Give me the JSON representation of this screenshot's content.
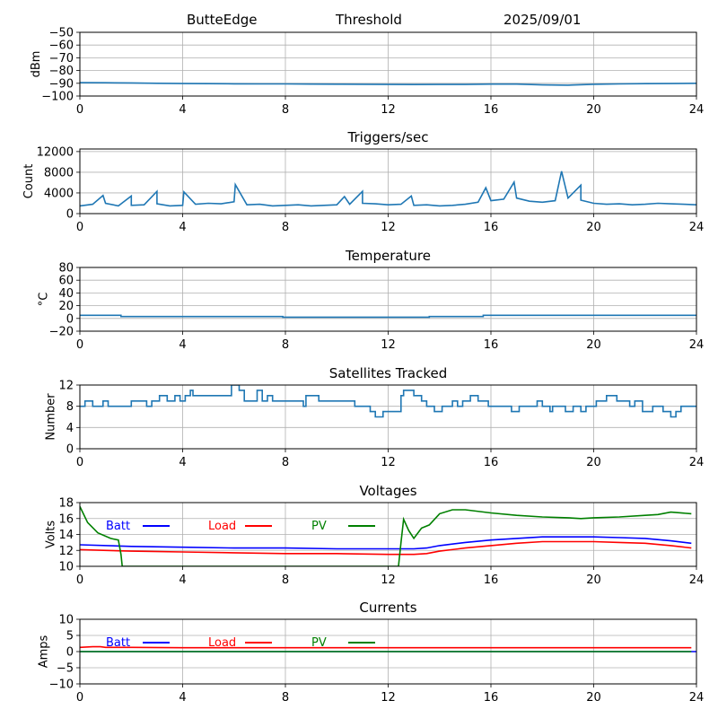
{
  "header": {
    "station": "ButteEdge",
    "mode": "Threshold",
    "date": "2025/09/01"
  },
  "chart_data": [
    {
      "type": "line",
      "title": "",
      "xlabel": "",
      "ylabel": "dBm",
      "xlim": [
        0,
        24
      ],
      "ylim": [
        -100,
        -50
      ],
      "xticks": [
        0,
        4,
        8,
        12,
        16,
        20,
        24
      ],
      "yticks": [
        -100,
        -90,
        -80,
        -70,
        -60,
        -50
      ],
      "grid": true,
      "series": [
        {
          "color": "#1f77b4",
          "x": [
            0,
            1,
            2,
            3,
            4,
            5,
            6,
            7,
            8,
            9,
            10,
            11,
            12,
            13,
            14,
            15,
            16,
            17,
            18,
            19,
            20,
            21,
            22,
            23,
            24
          ],
          "y": [
            -89.5,
            -89.6,
            -89.7,
            -90.0,
            -90.2,
            -90.3,
            -90.4,
            -90.5,
            -90.5,
            -90.6,
            -90.7,
            -90.8,
            -90.9,
            -91.0,
            -90.9,
            -90.9,
            -90.6,
            -90.6,
            -91.3,
            -91.5,
            -90.8,
            -90.5,
            -90.3,
            -90.2,
            -90.0
          ]
        }
      ]
    },
    {
      "type": "line",
      "title": "Triggers/sec",
      "xlabel": "",
      "ylabel": "Count",
      "xlim": [
        0,
        24
      ],
      "ylim": [
        0,
        12500
      ],
      "xticks": [
        0,
        4,
        8,
        12,
        16,
        20,
        24
      ],
      "yticks": [
        0,
        4000,
        8000,
        12000
      ],
      "grid": true,
      "series": [
        {
          "color": "#1f77b4",
          "x": [
            0,
            0.5,
            1,
            1.5,
            2,
            2.5,
            3,
            3.5,
            4,
            4.5,
            5,
            5.5,
            6,
            6.5,
            7,
            7.5,
            8,
            8.5,
            9,
            9.5,
            10,
            10.5,
            11,
            11.5,
            12,
            12.5,
            13,
            13.5,
            14,
            14.5,
            15,
            15.5,
            16,
            16.5,
            17,
            17.5,
            18,
            18.5,
            19,
            19.5,
            20,
            20.5,
            21,
            21.5,
            22,
            22.5,
            23,
            23.5,
            24
          ],
          "y": [
            1500,
            1800,
            2000,
            1500,
            1600,
            1700,
            1900,
            1500,
            1600,
            1800,
            2000,
            1900,
            2300,
            1700,
            1800,
            1500,
            1600,
            1700,
            1500,
            1600,
            1700,
            1800,
            2000,
            1900,
            1700,
            1800,
            1600,
            1700,
            1500,
            1600,
            1800,
            2200,
            2500,
            2800,
            3000,
            2400,
            2200,
            2500,
            3000,
            2600,
            2000,
            1800,
            1900,
            1700,
            1800,
            2000,
            1900,
            1800,
            1700
          ],
          "spikes": [
            [
              0.9,
              3500
            ],
            [
              2.0,
              3400
            ],
            [
              3.0,
              4300
            ],
            [
              4.05,
              4200
            ],
            [
              6.05,
              5600
            ],
            [
              10.3,
              3300
            ],
            [
              11.0,
              4300
            ],
            [
              12.9,
              3400
            ],
            [
              15.8,
              5000
            ],
            [
              16.9,
              6100
            ],
            [
              18.75,
              8200
            ],
            [
              19.5,
              5500
            ]
          ]
        }
      ]
    },
    {
      "type": "line",
      "title": "Temperature",
      "xlabel": "",
      "ylabel": "°C",
      "xlim": [
        0,
        24
      ],
      "ylim": [
        -20,
        80
      ],
      "xticks": [
        0,
        4,
        8,
        12,
        16,
        20,
        24
      ],
      "yticks": [
        -20,
        0,
        20,
        40,
        60,
        80
      ],
      "grid": true,
      "series": [
        {
          "color": "#1f77b4",
          "step": true,
          "x": [
            0,
            1.6,
            7.9,
            13.6,
            15.7,
            24
          ],
          "y": [
            5,
            3,
            2,
            3,
            5,
            5
          ]
        }
      ]
    },
    {
      "type": "line",
      "title": "Satellites Tracked",
      "xlabel": "",
      "ylabel": "Number",
      "xlim": [
        0,
        24
      ],
      "ylim": [
        0,
        12
      ],
      "xticks": [
        0,
        4,
        8,
        12,
        16,
        20,
        24
      ],
      "yticks": [
        0,
        4,
        8,
        12
      ],
      "grid": true,
      "series": [
        {
          "color": "#1f77b4",
          "step": true,
          "x": [
            0,
            0.2,
            0.5,
            0.9,
            1.1,
            2.0,
            2.6,
            2.8,
            3.1,
            3.4,
            3.7,
            3.9,
            4.1,
            4.3,
            4.4,
            4.9,
            5.9,
            6.2,
            6.4,
            6.9,
            7.1,
            7.3,
            7.5,
            8.0,
            8.7,
            8.8,
            9.3,
            10.7,
            11.3,
            11.5,
            11.8,
            12.5,
            12.6,
            13.0,
            13.3,
            13.5,
            13.8,
            14.1,
            14.5,
            14.7,
            14.9,
            15.2,
            15.5,
            15.9,
            16.4,
            16.8,
            17.1,
            17.8,
            18.0,
            18.3,
            18.4,
            18.9,
            19.2,
            19.5,
            19.7,
            20.1,
            20.5,
            20.9,
            21.4,
            21.6,
            21.9,
            22.3,
            22.7,
            23.0,
            23.2,
            23.4,
            23.6,
            24.0
          ],
          "y": [
            8,
            9,
            8,
            9,
            8,
            9,
            8,
            9,
            10,
            9,
            10,
            9,
            10,
            11,
            10,
            10,
            12,
            11,
            9,
            11,
            9,
            10,
            9,
            9,
            8,
            10,
            9,
            8,
            7,
            6,
            7,
            10,
            11,
            10,
            9,
            8,
            7,
            8,
            9,
            8,
            9,
            10,
            9,
            8,
            8,
            7,
            8,
            9,
            8,
            7,
            8,
            7,
            8,
            7,
            8,
            9,
            10,
            9,
            8,
            9,
            7,
            8,
            7,
            6,
            7,
            8,
            8,
            8
          ]
        }
      ]
    },
    {
      "type": "line",
      "title": "Voltages",
      "xlabel": "",
      "ylabel": "Volts",
      "xlim": [
        0,
        24
      ],
      "ylim": [
        10,
        18
      ],
      "xticks": [
        0,
        4,
        8,
        12,
        16,
        20,
        24
      ],
      "yticks": [
        10,
        12,
        14,
        16,
        18
      ],
      "grid": true,
      "legend": "top-left, inline",
      "series": [
        {
          "name": "Batt",
          "color": "#0000ff",
          "x": [
            0,
            2,
            4,
            6,
            8,
            10,
            12,
            13,
            13.5,
            14,
            15,
            16,
            17,
            18,
            19,
            20,
            21,
            22,
            23,
            23.8
          ],
          "y": [
            12.7,
            12.5,
            12.4,
            12.3,
            12.3,
            12.2,
            12.2,
            12.2,
            12.3,
            12.6,
            13.0,
            13.3,
            13.5,
            13.7,
            13.7,
            13.7,
            13.6,
            13.5,
            13.2,
            12.9
          ]
        },
        {
          "name": "Load",
          "color": "#ff0000",
          "x": [
            0,
            2,
            4,
            6,
            8,
            10,
            12,
            13,
            13.5,
            14,
            15,
            16,
            17,
            18,
            19,
            20,
            21,
            22,
            23,
            23.8
          ],
          "y": [
            12.1,
            11.9,
            11.8,
            11.7,
            11.6,
            11.6,
            11.5,
            11.5,
            11.6,
            11.9,
            12.3,
            12.6,
            12.9,
            13.1,
            13.1,
            13.1,
            13.0,
            12.9,
            12.6,
            12.3
          ],
          "legend_label": "Load"
        },
        {
          "name": "PV",
          "color": "#008000",
          "x": [
            0,
            0.3,
            0.7,
            1.2,
            1.5,
            1.6,
            1.65,
            12.4,
            12.5,
            12.6,
            12.8,
            13.0,
            13.3,
            13.6,
            14.0,
            14.5,
            15.0,
            16.0,
            17.0,
            18.0,
            19.0,
            19.5,
            20.0,
            21.0,
            22.0,
            22.5,
            23.0,
            23.8
          ],
          "y": [
            17.5,
            15.5,
            14.2,
            13.5,
            13.3,
            11.5,
            10.0,
            10.0,
            13.0,
            15.9,
            14.5,
            13.5,
            14.8,
            15.2,
            16.6,
            17.1,
            17.1,
            16.7,
            16.4,
            16.2,
            16.1,
            16.0,
            16.1,
            16.2,
            16.4,
            16.5,
            16.8,
            16.6
          ]
        }
      ]
    },
    {
      "type": "line",
      "title": "Currents",
      "xlabel": "",
      "ylabel": "Amps",
      "xlim": [
        0,
        24
      ],
      "ylim": [
        -10,
        10
      ],
      "xticks": [
        0,
        4,
        8,
        12,
        16,
        20,
        24
      ],
      "yticks": [
        -10,
        -5,
        0,
        5,
        10
      ],
      "grid": true,
      "legend": "top-left, inline",
      "series": [
        {
          "name": "Batt",
          "color": "#0000ff",
          "x": [
            0,
            24
          ],
          "y": [
            0,
            0
          ]
        },
        {
          "name": "Load",
          "color": "#ff0000",
          "x": [
            0,
            0.5,
            0.8,
            1.0,
            2,
            4,
            8,
            12,
            16,
            20,
            23.8
          ],
          "y": [
            1.3,
            1.5,
            1.5,
            1.3,
            1.3,
            1.2,
            1.2,
            1.2,
            1.2,
            1.2,
            1.2
          ]
        },
        {
          "name": "PV",
          "color": "#008000",
          "x": [
            0,
            23.8
          ],
          "y": [
            0,
            0
          ]
        }
      ]
    }
  ]
}
